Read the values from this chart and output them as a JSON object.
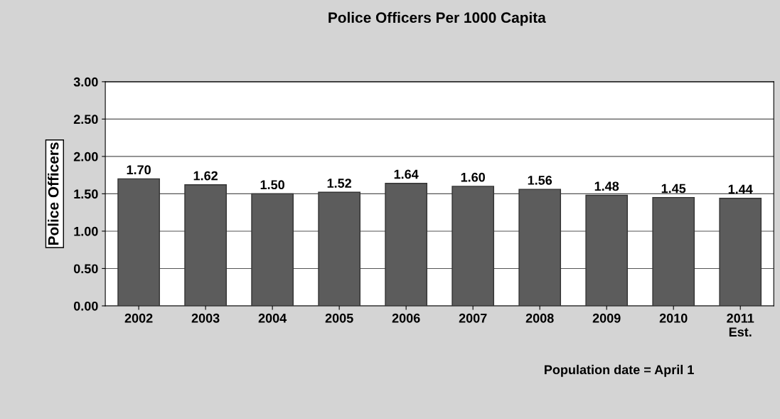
{
  "chart_data": {
    "type": "bar",
    "title": "Police Officers Per 1000 Capita",
    "ylabel": "Police Officers",
    "categories": [
      "2002",
      "2003",
      "2004",
      "2005",
      "2006",
      "2007",
      "2008",
      "2009",
      "2010",
      "2011\nEst."
    ],
    "values": [
      1.7,
      1.62,
      1.5,
      1.52,
      1.64,
      1.6,
      1.56,
      1.48,
      1.45,
      1.44
    ],
    "value_labels": [
      "1.70",
      "1.62",
      "1.50",
      "1.52",
      "1.64",
      "1.60",
      "1.56",
      "1.48",
      "1.45",
      "1.44"
    ],
    "color": "#5c5c5c",
    "ylim": [
      0,
      3
    ],
    "yticks": [
      {
        "value": 0,
        "label": "0.00"
      },
      {
        "value": 0.5,
        "label": "0.50"
      },
      {
        "value": 1,
        "label": "1.00"
      },
      {
        "value": 1.5,
        "label": "1.50"
      },
      {
        "value": 2,
        "label": "2.00"
      },
      {
        "value": 2.5,
        "label": "2.50"
      },
      {
        "value": 3,
        "label": "3.00"
      }
    ],
    "grid": "y",
    "annotations": [
      "Population date = April 1"
    ]
  }
}
